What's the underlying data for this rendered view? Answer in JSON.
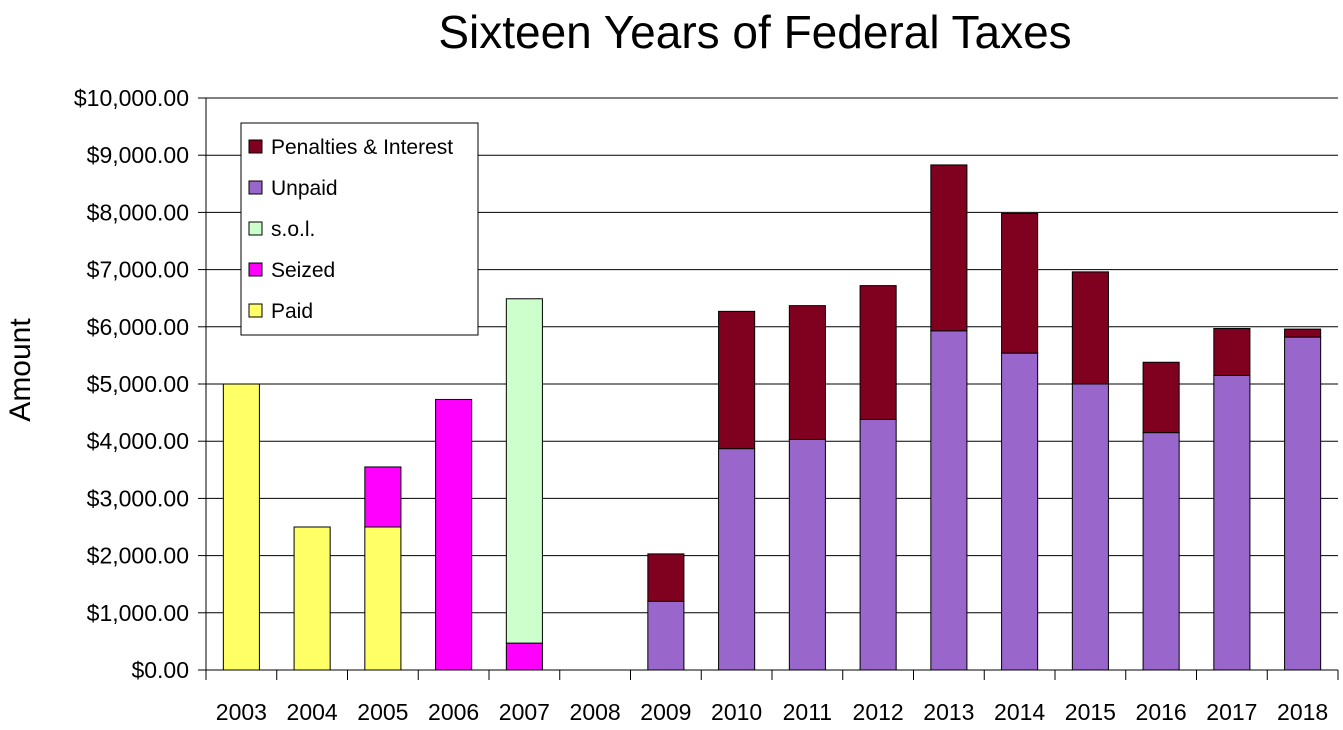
{
  "chart_data": {
    "type": "bar",
    "stacked": true,
    "title": "Sixteen Years of Federal Taxes",
    "xlabel": "",
    "ylabel": "Amount",
    "ylim": [
      0,
      10000
    ],
    "yticks": [
      "$0.00",
      "$1,000.00",
      "$2,000.00",
      "$3,000.00",
      "$4,000.00",
      "$5,000.00",
      "$6,000.00",
      "$7,000.00",
      "$8,000.00",
      "$9,000.00",
      "$10,000.00"
    ],
    "ytick_values": [
      0,
      1000,
      2000,
      3000,
      4000,
      5000,
      6000,
      7000,
      8000,
      9000,
      10000
    ],
    "grid": true,
    "legend_position": "top-left",
    "categories": [
      "2003",
      "2004",
      "2005",
      "2006",
      "2007",
      "2008",
      "2009",
      "2010",
      "2011",
      "2012",
      "2013",
      "2014",
      "2015",
      "2016",
      "2017",
      "2018"
    ],
    "series": [
      {
        "name": "Paid",
        "color": "#ffff66",
        "values": [
          5000,
          2500,
          2500,
          0,
          0,
          0,
          0,
          0,
          0,
          0,
          0,
          0,
          0,
          0,
          0,
          0
        ]
      },
      {
        "name": "Seized",
        "color": "#ff00ff",
        "values": [
          0,
          0,
          1050,
          4730,
          470,
          0,
          0,
          0,
          0,
          0,
          0,
          0,
          0,
          0,
          0,
          0
        ]
      },
      {
        "name": "s.o.l.",
        "color": "#ccffcc",
        "values": [
          0,
          0,
          0,
          0,
          6020,
          0,
          0,
          0,
          0,
          0,
          0,
          0,
          0,
          0,
          0,
          0
        ]
      },
      {
        "name": "Unpaid",
        "color": "#9966cc",
        "values": [
          0,
          0,
          0,
          0,
          0,
          0,
          1200,
          3870,
          4030,
          4380,
          5930,
          5540,
          5000,
          4150,
          5150,
          5820
        ]
      },
      {
        "name": "Penalties & Interest",
        "color": "#800020",
        "values": [
          0,
          0,
          0,
          0,
          0,
          0,
          830,
          2400,
          2340,
          2340,
          2900,
          2440,
          1960,
          1230,
          820,
          140
        ]
      }
    ],
    "legend_order": [
      "Penalties & Interest",
      "Unpaid",
      "s.o.l.",
      "Seized",
      "Paid"
    ]
  }
}
